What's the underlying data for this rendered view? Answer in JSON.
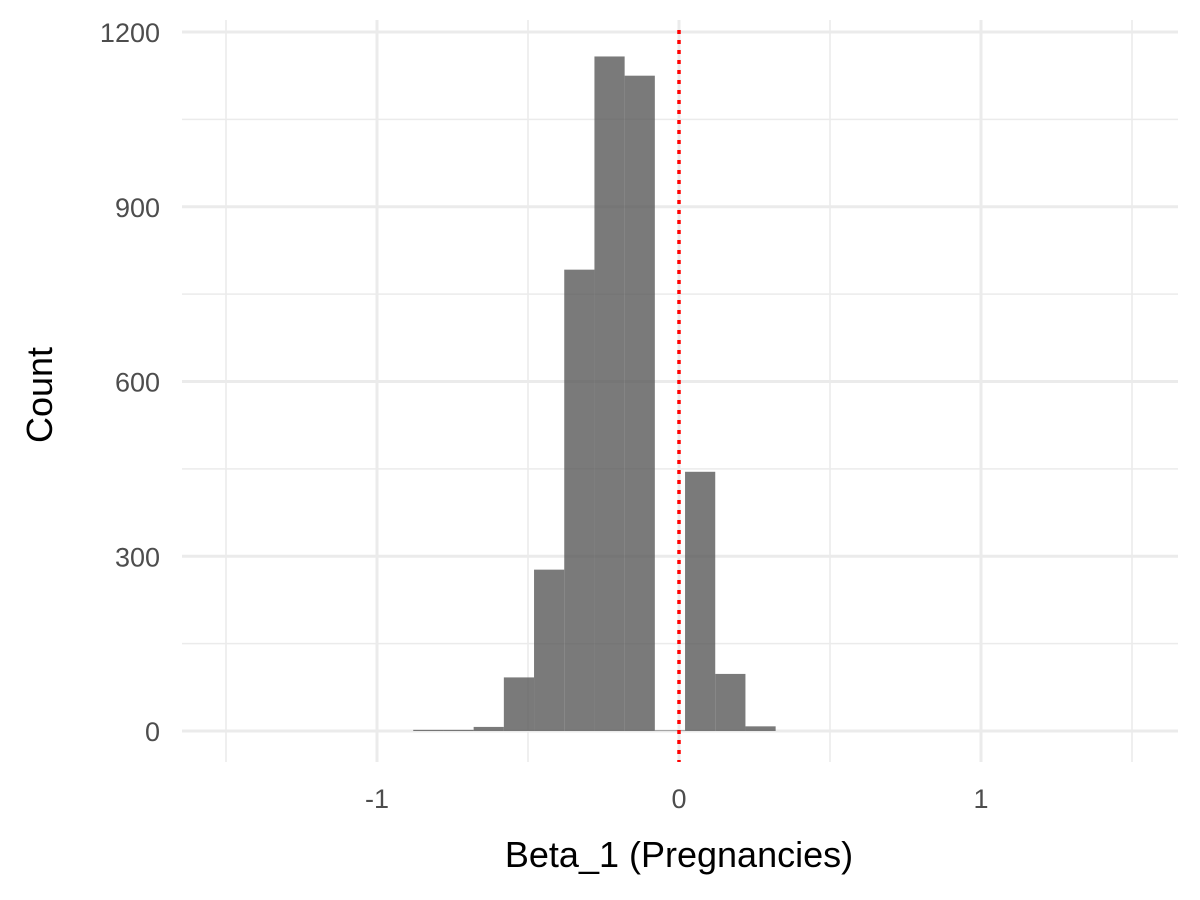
{
  "chart_data": {
    "type": "bar",
    "subtype": "histogram",
    "title": "",
    "xlabel": "Beta_1 (Pregnancies)",
    "ylabel": "Count",
    "xlim": [
      -1.6,
      1.6
    ],
    "ylim": [
      -55,
      1200
    ],
    "x_ticks": [
      {
        "value": -1,
        "label": "-1"
      },
      {
        "value": 0,
        "label": "0"
      },
      {
        "value": 1,
        "label": "1"
      }
    ],
    "x_minor_ticks": [
      -1.5,
      -0.5,
      0.5,
      1.5
    ],
    "y_ticks": [
      {
        "value": 0,
        "label": "0"
      },
      {
        "value": 300,
        "label": "300"
      },
      {
        "value": 600,
        "label": "600"
      },
      {
        "value": 900,
        "label": "900"
      },
      {
        "value": 1200,
        "label": "1200"
      }
    ],
    "y_minor_ticks": [
      150,
      450,
      750,
      1050
    ],
    "grid": true,
    "bins": [
      {
        "x0": -0.88,
        "x1": -0.78,
        "count": 2
      },
      {
        "x0": -0.78,
        "x1": -0.68,
        "count": 2
      },
      {
        "x0": -0.68,
        "x1": -0.58,
        "count": 7
      },
      {
        "x0": -0.58,
        "x1": -0.48,
        "count": 92
      },
      {
        "x0": -0.48,
        "x1": -0.38,
        "count": 277
      },
      {
        "x0": -0.38,
        "x1": -0.28,
        "count": 792
      },
      {
        "x0": -0.28,
        "x1": -0.18,
        "count": 1158
      },
      {
        "x0": -0.18,
        "x1": -0.08,
        "count": 1125
      },
      {
        "x0": -0.08,
        "x1": 0.02,
        "count": 1
      },
      {
        "x0": 0.02,
        "x1": 0.12,
        "count": 445
      },
      {
        "x0": 0.12,
        "x1": 0.22,
        "count": 98
      },
      {
        "x0": 0.22,
        "x1": 0.32,
        "count": 8
      }
    ],
    "reference_line": {
      "x": 0,
      "style": "dotted",
      "color": "#ff0000"
    },
    "bar_color": "#595959",
    "bar_opacity": 0.8,
    "grid_color": "#ebebeb"
  }
}
